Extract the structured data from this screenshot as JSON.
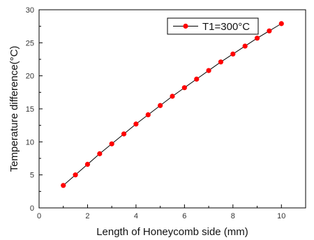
{
  "chart_data": {
    "type": "line",
    "xlabel": "Length of Honeycomb side (mm)",
    "ylabel": "Temperature difference(°C)",
    "xlim": [
      0,
      11
    ],
    "ylim": [
      0,
      30
    ],
    "x_ticks": [
      0,
      2,
      4,
      6,
      8,
      10
    ],
    "y_ticks": [
      0,
      5,
      10,
      15,
      20,
      25,
      30
    ],
    "grid": false,
    "legend_position": "top-right",
    "series": [
      {
        "name": "T1=300°C",
        "line_color": "#000000",
        "marker_color": "#ff0000",
        "x": [
          1.0,
          1.5,
          2.0,
          2.5,
          3.0,
          3.5,
          4.0,
          4.5,
          5.0,
          5.5,
          6.0,
          6.5,
          7.0,
          7.5,
          8.0,
          8.5,
          9.0,
          9.5,
          10.0
        ],
        "y": [
          3.4,
          5.0,
          6.6,
          8.2,
          9.7,
          11.2,
          12.7,
          14.1,
          15.5,
          16.9,
          18.2,
          19.5,
          20.8,
          22.1,
          23.3,
          24.5,
          25.7,
          26.8,
          27.9
        ]
      }
    ]
  }
}
